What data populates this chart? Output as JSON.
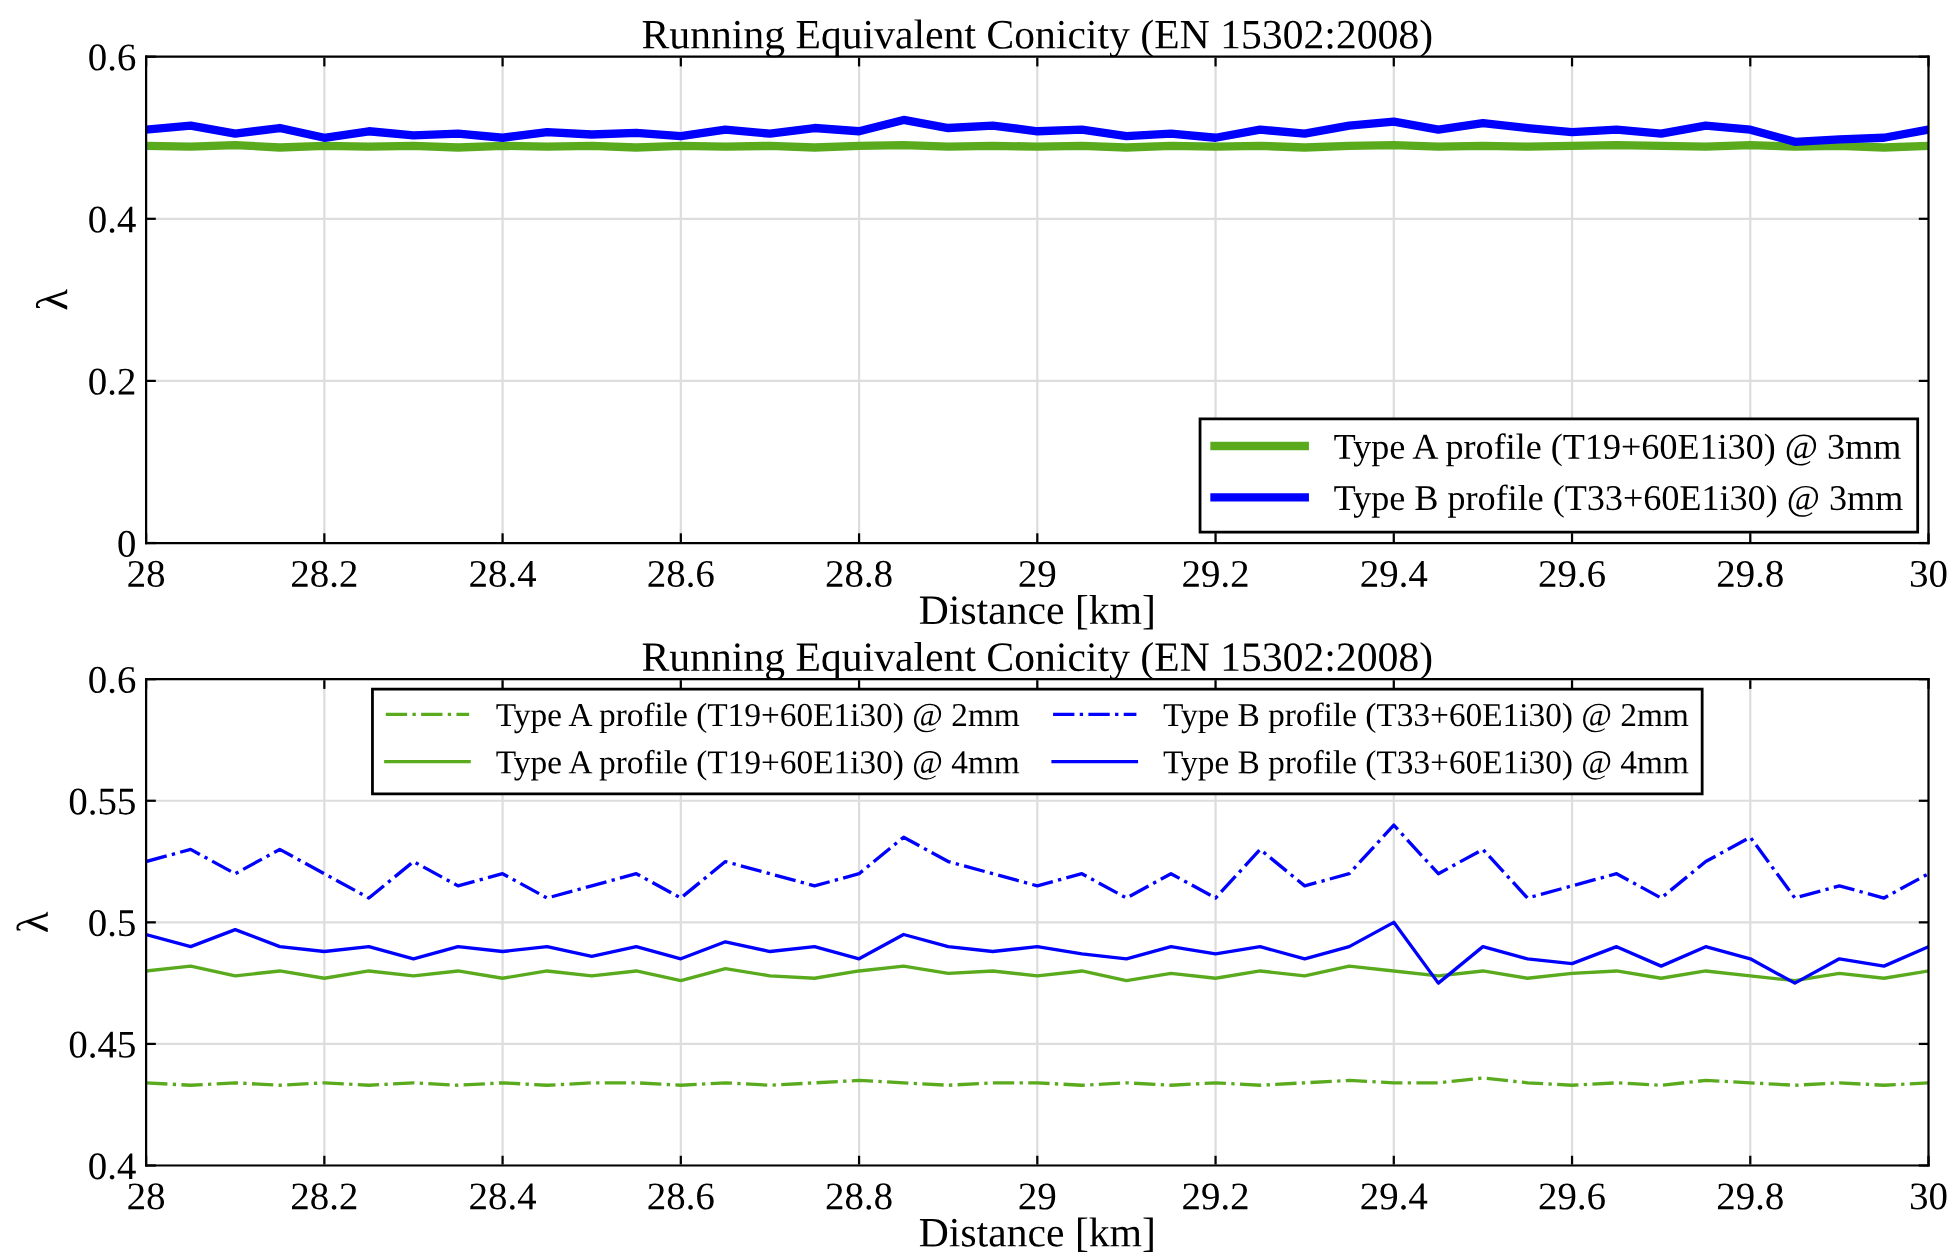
{
  "chart_data": [
    {
      "type": "line",
      "title": "Running Equivalent Conicity (EN 15302:2008)",
      "xlabel": "Distance [km]",
      "ylabel": "λ",
      "xlim": [
        28,
        30
      ],
      "ylim": [
        0,
        0.6
      ],
      "xticks": [
        28,
        28.2,
        28.4,
        28.6,
        28.8,
        29,
        29.2,
        29.4,
        29.6,
        29.8,
        30
      ],
      "yticks": [
        0,
        0.2,
        0.4,
        0.6
      ],
      "grid": true,
      "legend": "bottom right",
      "line_style": "solid",
      "x": [
        28.0,
        28.05,
        28.1,
        28.15,
        28.2,
        28.25,
        28.3,
        28.35,
        28.4,
        28.45,
        28.5,
        28.55,
        28.6,
        28.65,
        28.7,
        28.75,
        28.8,
        28.85,
        28.9,
        28.95,
        29.0,
        29.05,
        29.1,
        29.15,
        29.2,
        29.25,
        29.3,
        29.35,
        29.4,
        29.45,
        29.5,
        29.55,
        29.6,
        29.65,
        29.7,
        29.75,
        29.8,
        29.85,
        29.9,
        29.95,
        30.0
      ],
      "series": [
        {
          "name": "Type A profile (T19+60E1i30) @ 3mm",
          "color": "#5aaa1e",
          "values": [
            0.49,
            0.489,
            0.491,
            0.488,
            0.49,
            0.489,
            0.49,
            0.488,
            0.49,
            0.489,
            0.49,
            0.488,
            0.49,
            0.489,
            0.49,
            0.488,
            0.49,
            0.491,
            0.489,
            0.49,
            0.489,
            0.49,
            0.488,
            0.49,
            0.489,
            0.49,
            0.488,
            0.49,
            0.491,
            0.489,
            0.49,
            0.489,
            0.49,
            0.491,
            0.49,
            0.489,
            0.491,
            0.489,
            0.49,
            0.488,
            0.49
          ]
        },
        {
          "name": "Type B profile (T33+60E1i30) @ 3mm",
          "color": "#0000ff",
          "values": [
            0.51,
            0.515,
            0.505,
            0.512,
            0.5,
            0.508,
            0.503,
            0.505,
            0.5,
            0.507,
            0.504,
            0.506,
            0.502,
            0.51,
            0.505,
            0.512,
            0.508,
            0.522,
            0.512,
            0.515,
            0.508,
            0.51,
            0.502,
            0.505,
            0.5,
            0.51,
            0.505,
            0.515,
            0.52,
            0.51,
            0.518,
            0.512,
            0.507,
            0.51,
            0.505,
            0.515,
            0.51,
            0.495,
            0.498,
            0.5,
            0.51
          ]
        }
      ]
    },
    {
      "type": "line",
      "title": "Running Equivalent Conicity (EN 15302:2008)",
      "xlabel": "Distance [km]",
      "ylabel": "λ",
      "xlim": [
        28,
        30
      ],
      "ylim": [
        0.4,
        0.6
      ],
      "xticks": [
        28,
        28.2,
        28.4,
        28.6,
        28.8,
        29,
        29.2,
        29.4,
        29.6,
        29.8,
        30
      ],
      "yticks": [
        0.4,
        0.45,
        0.5,
        0.55,
        0.6
      ],
      "grid": true,
      "legend": "top",
      "x": [
        28.0,
        28.05,
        28.1,
        28.15,
        28.2,
        28.25,
        28.3,
        28.35,
        28.4,
        28.45,
        28.5,
        28.55,
        28.6,
        28.65,
        28.7,
        28.75,
        28.8,
        28.85,
        28.9,
        28.95,
        29.0,
        29.05,
        29.1,
        29.15,
        29.2,
        29.25,
        29.3,
        29.35,
        29.4,
        29.45,
        29.5,
        29.55,
        29.6,
        29.65,
        29.7,
        29.75,
        29.8,
        29.85,
        29.9,
        29.95,
        30.0
      ],
      "series": [
        {
          "name": "Type A profile (T19+60E1i30) @ 2mm",
          "color": "#5aaa1e",
          "line_style": "dashed",
          "values": [
            0.434,
            0.433,
            0.434,
            0.433,
            0.434,
            0.433,
            0.434,
            0.433,
            0.434,
            0.433,
            0.434,
            0.434,
            0.433,
            0.434,
            0.433,
            0.434,
            0.435,
            0.434,
            0.433,
            0.434,
            0.434,
            0.433,
            0.434,
            0.433,
            0.434,
            0.433,
            0.434,
            0.435,
            0.434,
            0.434,
            0.436,
            0.434,
            0.433,
            0.434,
            0.433,
            0.435,
            0.434,
            0.433,
            0.434,
            0.433,
            0.434
          ]
        },
        {
          "name": "Type B profile (T33+60E1i30) @ 2mm",
          "color": "#0000ff",
          "line_style": "dashed",
          "values": [
            0.525,
            0.53,
            0.52,
            0.53,
            0.52,
            0.51,
            0.525,
            0.515,
            0.52,
            0.51,
            0.515,
            0.52,
            0.51,
            0.525,
            0.52,
            0.515,
            0.52,
            0.535,
            0.525,
            0.52,
            0.515,
            0.52,
            0.51,
            0.52,
            0.51,
            0.53,
            0.515,
            0.52,
            0.54,
            0.52,
            0.53,
            0.51,
            0.515,
            0.52,
            0.51,
            0.525,
            0.535,
            0.51,
            0.515,
            0.51,
            0.52
          ]
        },
        {
          "name": "Type A profile (T19+60E1i30) @ 4mm",
          "color": "#5aaa1e",
          "line_style": "solid",
          "values": [
            0.48,
            0.482,
            0.478,
            0.48,
            0.477,
            0.48,
            0.478,
            0.48,
            0.477,
            0.48,
            0.478,
            0.48,
            0.476,
            0.481,
            0.478,
            0.477,
            0.48,
            0.482,
            0.479,
            0.48,
            0.478,
            0.48,
            0.476,
            0.479,
            0.477,
            0.48,
            0.478,
            0.482,
            0.48,
            0.478,
            0.48,
            0.477,
            0.479,
            0.48,
            0.477,
            0.48,
            0.478,
            0.476,
            0.479,
            0.477,
            0.48
          ]
        },
        {
          "name": "Type B profile (T33+60E1i30) @ 4mm",
          "color": "#0000ff",
          "line_style": "solid",
          "values": [
            0.495,
            0.49,
            0.497,
            0.49,
            0.488,
            0.49,
            0.485,
            0.49,
            0.488,
            0.49,
            0.486,
            0.49,
            0.485,
            0.492,
            0.488,
            0.49,
            0.485,
            0.495,
            0.49,
            0.488,
            0.49,
            0.487,
            0.485,
            0.49,
            0.487,
            0.49,
            0.485,
            0.49,
            0.5,
            0.475,
            0.49,
            0.485,
            0.483,
            0.49,
            0.482,
            0.49,
            0.485,
            0.475,
            0.485,
            0.482,
            0.49
          ]
        }
      ]
    }
  ]
}
